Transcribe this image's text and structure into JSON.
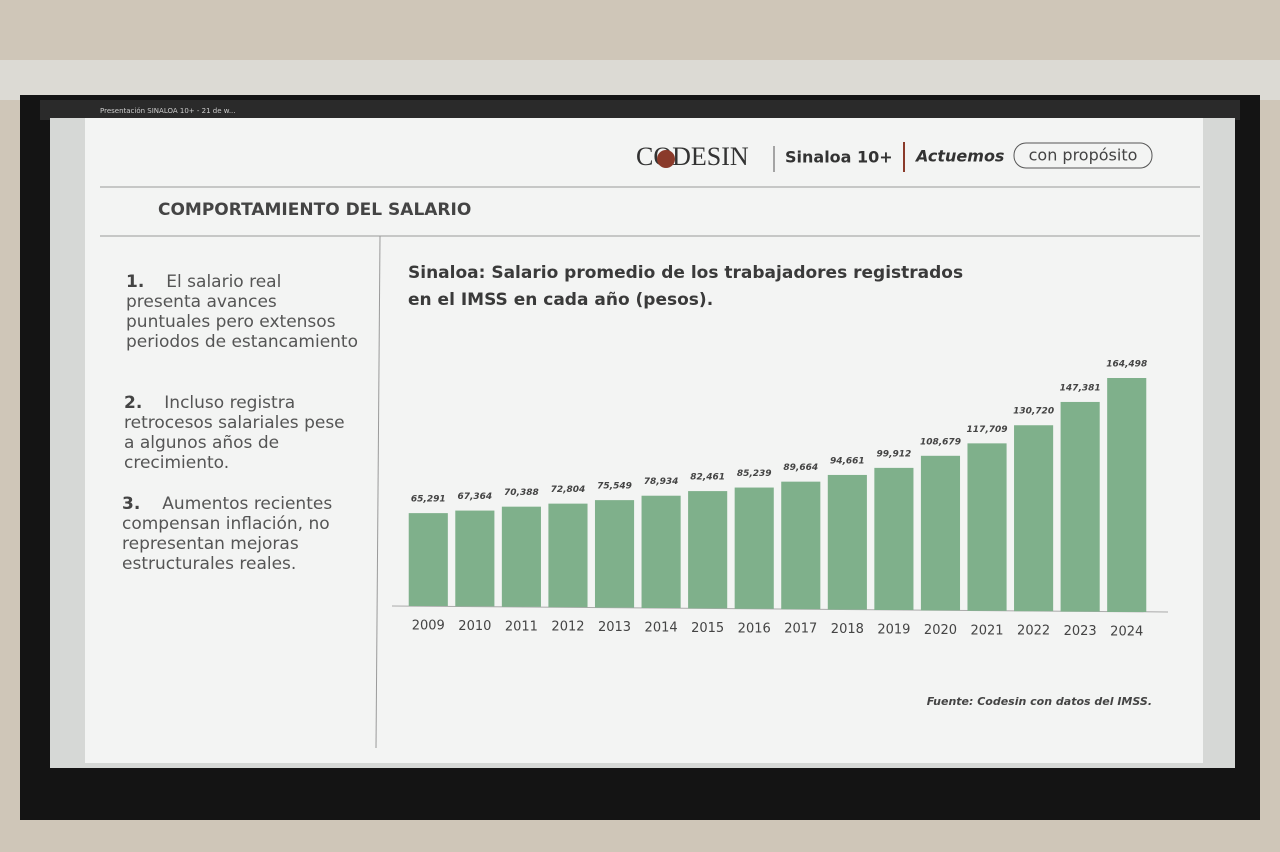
{
  "tab_title": "Presentación SINALOA 10+ - 21 de w...",
  "header": {
    "logo": "CODESIN",
    "brand": "Sinaloa 10+",
    "slogan": "Actuemos",
    "badge": "con propósito"
  },
  "section_title": "COMPORTAMIENTO DEL SALARIO",
  "points": [
    {
      "number": "1.",
      "text": "El salario real presenta avances puntuales pero extensos periodos de estancamiento"
    },
    {
      "number": "2.",
      "text": "Incluso registra retrocesos salariales pese a algunos años de crecimiento."
    },
    {
      "number": "3.",
      "text": "Aumentos recientes compensan inflación, no representan mejoras estructurales reales."
    }
  ],
  "chart_data": {
    "type": "bar",
    "title": "Sinaloa: Salario promedio de los trabajadores registrados en el IMSS en cada año (pesos).",
    "categories": [
      "2009",
      "2010",
      "2011",
      "2012",
      "2013",
      "2014",
      "2015",
      "2016",
      "2017",
      "2018",
      "2019",
      "2020",
      "2021",
      "2022",
      "2023",
      "2024"
    ],
    "values": [
      65291,
      67364,
      70388,
      72804,
      75549,
      78934,
      82461,
      85239,
      89664,
      94661,
      99912,
      108679,
      117709,
      130720,
      147381,
      164498
    ],
    "value_labels": [
      "65,291",
      "67,364",
      "70,388",
      "72,804",
      "75,549",
      "78,934",
      "82,461",
      "85,239",
      "89,664",
      "94,661",
      "99,912",
      "108,679",
      "117,709",
      "130,720",
      "147,381",
      "164,498"
    ],
    "color": "#7fb08b",
    "source": "Fuente: Codesin con datos del IMSS."
  }
}
